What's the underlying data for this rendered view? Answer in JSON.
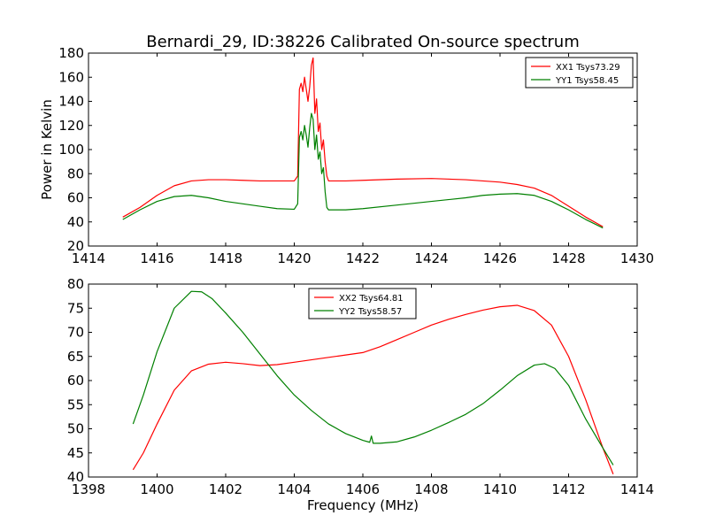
{
  "figure": {
    "title": "Bernardi_29, ID:38226 Calibrated On-source spectrum"
  },
  "colors": {
    "red": "#ff0000",
    "green": "#008000"
  },
  "chart_data": [
    {
      "type": "line",
      "title": "Bernardi_29, ID:38226 Calibrated On-source spectrum",
      "xlabel": "",
      "ylabel": "Power in Kelvin",
      "xlim": [
        1414,
        1430
      ],
      "ylim": [
        20,
        180
      ],
      "xticks": [
        1414,
        1416,
        1418,
        1420,
        1422,
        1424,
        1426,
        1428,
        1430
      ],
      "yticks": [
        20,
        40,
        60,
        80,
        100,
        120,
        140,
        160,
        180
      ],
      "grid": false,
      "legend": "top-right",
      "series": [
        {
          "name": "XX1 Tsys73.29",
          "color": "#ff0000",
          "points": [
            [
              1415.0,
              44
            ],
            [
              1415.5,
              52
            ],
            [
              1416.0,
              62
            ],
            [
              1416.5,
              70
            ],
            [
              1417.0,
              74
            ],
            [
              1417.5,
              75
            ],
            [
              1418.0,
              75
            ],
            [
              1418.5,
              74.5
            ],
            [
              1419.0,
              74
            ],
            [
              1419.5,
              74
            ],
            [
              1420.0,
              74
            ],
            [
              1420.1,
              78
            ],
            [
              1420.15,
              150
            ],
            [
              1420.2,
              155
            ],
            [
              1420.25,
              148
            ],
            [
              1420.3,
              160
            ],
            [
              1420.35,
              150
            ],
            [
              1420.4,
              140
            ],
            [
              1420.45,
              152
            ],
            [
              1420.5,
              170
            ],
            [
              1420.55,
              176
            ],
            [
              1420.6,
              130
            ],
            [
              1420.65,
              142
            ],
            [
              1420.7,
              115
            ],
            [
              1420.75,
              122
            ],
            [
              1420.8,
              100
            ],
            [
              1420.85,
              108
            ],
            [
              1420.9,
              90
            ],
            [
              1420.95,
              78
            ],
            [
              1421.0,
              74
            ],
            [
              1421.5,
              74
            ],
            [
              1422.0,
              74.5
            ],
            [
              1423.0,
              75.5
            ],
            [
              1424.0,
              76
            ],
            [
              1425.0,
              75
            ],
            [
              1426.0,
              73
            ],
            [
              1426.5,
              71
            ],
            [
              1427.0,
              68
            ],
            [
              1427.5,
              62
            ],
            [
              1428.0,
              53
            ],
            [
              1428.5,
              44
            ],
            [
              1429.0,
              36
            ]
          ]
        },
        {
          "name": "YY1 Tsys58.45",
          "color": "#008000",
          "points": [
            [
              1415.0,
              42
            ],
            [
              1415.5,
              50
            ],
            [
              1416.0,
              57
            ],
            [
              1416.5,
              61
            ],
            [
              1417.0,
              62
            ],
            [
              1417.5,
              60
            ],
            [
              1418.0,
              57
            ],
            [
              1418.5,
              55
            ],
            [
              1419.0,
              53
            ],
            [
              1419.5,
              51
            ],
            [
              1420.0,
              50.5
            ],
            [
              1420.1,
              55
            ],
            [
              1420.15,
              110
            ],
            [
              1420.2,
              115
            ],
            [
              1420.25,
              108
            ],
            [
              1420.3,
              120
            ],
            [
              1420.35,
              112
            ],
            [
              1420.4,
              102
            ],
            [
              1420.45,
              118
            ],
            [
              1420.5,
              130
            ],
            [
              1420.55,
              125
            ],
            [
              1420.6,
              100
            ],
            [
              1420.65,
              112
            ],
            [
              1420.7,
              92
            ],
            [
              1420.75,
              98
            ],
            [
              1420.8,
              80
            ],
            [
              1420.85,
              85
            ],
            [
              1420.9,
              65
            ],
            [
              1420.95,
              52
            ],
            [
              1421.0,
              50
            ],
            [
              1421.5,
              50
            ],
            [
              1422.0,
              51
            ],
            [
              1423.0,
              54
            ],
            [
              1424.0,
              57
            ],
            [
              1425.0,
              60
            ],
            [
              1425.5,
              62
            ],
            [
              1426.0,
              63
            ],
            [
              1426.5,
              63.5
            ],
            [
              1427.0,
              62
            ],
            [
              1427.5,
              57
            ],
            [
              1428.0,
              50
            ],
            [
              1428.5,
              42
            ],
            [
              1429.0,
              35
            ]
          ]
        }
      ]
    },
    {
      "type": "line",
      "title": "",
      "xlabel": "Frequency (MHz)",
      "ylabel": "",
      "xlim": [
        1398,
        1414
      ],
      "ylim": [
        40,
        80
      ],
      "xticks": [
        1398,
        1400,
        1402,
        1404,
        1406,
        1408,
        1410,
        1412,
        1414
      ],
      "yticks": [
        40,
        45,
        50,
        55,
        60,
        65,
        70,
        75,
        80
      ],
      "grid": false,
      "legend": "top-center",
      "series": [
        {
          "name": "XX2 Tsys64.81",
          "color": "#ff0000",
          "points": [
            [
              1399.3,
              41.5
            ],
            [
              1399.6,
              45
            ],
            [
              1400.0,
              51
            ],
            [
              1400.5,
              58
            ],
            [
              1401.0,
              62
            ],
            [
              1401.5,
              63.4
            ],
            [
              1402.0,
              63.8
            ],
            [
              1402.5,
              63.5
            ],
            [
              1403.0,
              63.1
            ],
            [
              1403.5,
              63.3
            ],
            [
              1404.0,
              63.8
            ],
            [
              1404.5,
              64.3
            ],
            [
              1405.0,
              64.8
            ],
            [
              1405.5,
              65.3
            ],
            [
              1406.0,
              65.8
            ],
            [
              1406.5,
              67
            ],
            [
              1407.0,
              68.5
            ],
            [
              1407.5,
              70
            ],
            [
              1408.0,
              71.5
            ],
            [
              1408.5,
              72.7
            ],
            [
              1409.0,
              73.7
            ],
            [
              1409.5,
              74.6
            ],
            [
              1410.0,
              75.3
            ],
            [
              1410.5,
              75.6
            ],
            [
              1411.0,
              74.5
            ],
            [
              1411.5,
              71.5
            ],
            [
              1412.0,
              65
            ],
            [
              1412.5,
              56
            ],
            [
              1413.0,
              46
            ],
            [
              1413.3,
              40.6
            ]
          ]
        },
        {
          "name": "YY2 Tsys58.57",
          "color": "#008000",
          "points": [
            [
              1399.3,
              51
            ],
            [
              1399.6,
              57
            ],
            [
              1400.0,
              66
            ],
            [
              1400.5,
              75
            ],
            [
              1401.0,
              78.5
            ],
            [
              1401.3,
              78.4
            ],
            [
              1401.6,
              77
            ],
            [
              1402.0,
              74
            ],
            [
              1402.5,
              70
            ],
            [
              1403.0,
              65.5
            ],
            [
              1403.5,
              61
            ],
            [
              1404.0,
              57
            ],
            [
              1404.5,
              53.8
            ],
            [
              1405.0,
              51
            ],
            [
              1405.5,
              49
            ],
            [
              1406.0,
              47.6
            ],
            [
              1406.2,
              47.2
            ],
            [
              1406.25,
              48.5
            ],
            [
              1406.3,
              47
            ],
            [
              1406.5,
              47
            ],
            [
              1407.0,
              47.3
            ],
            [
              1407.5,
              48.3
            ],
            [
              1408.0,
              49.7
            ],
            [
              1408.5,
              51.3
            ],
            [
              1409.0,
              53
            ],
            [
              1409.5,
              55.2
            ],
            [
              1410.0,
              58
            ],
            [
              1410.5,
              61
            ],
            [
              1411.0,
              63.2
            ],
            [
              1411.3,
              63.5
            ],
            [
              1411.6,
              62.5
            ],
            [
              1412.0,
              59
            ],
            [
              1412.5,
              52
            ],
            [
              1413.0,
              46
            ],
            [
              1413.3,
              42.5
            ]
          ]
        }
      ]
    }
  ]
}
